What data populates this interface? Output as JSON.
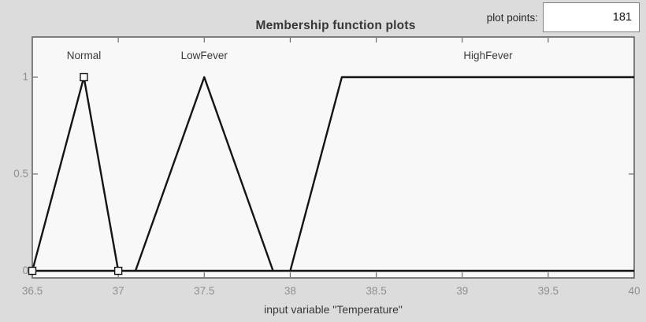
{
  "plot_points": {
    "label": "plot points:",
    "value": "181"
  },
  "chart_data": {
    "type": "line",
    "title": "Membership function plots",
    "xlabel": "input variable \"Temperature\"",
    "ylabel": "",
    "xlim": [
      36.5,
      40
    ],
    "ylim": [
      -0.04,
      1.24
    ],
    "grid": false,
    "legend_position": "labels-above-curves",
    "x_ticks": [
      36.5,
      37,
      37.5,
      38,
      38.5,
      39,
      39.5,
      40
    ],
    "x_tick_labels": [
      "36.5",
      "37",
      "37.5",
      "38",
      "38.5",
      "39",
      "39.5",
      "40"
    ],
    "y_ticks": [
      0,
      0.5,
      1
    ],
    "y_tick_labels": [
      "0",
      "0.5",
      "1"
    ],
    "baseline": [
      [
        36.5,
        0
      ],
      [
        40,
        0
      ]
    ],
    "series": [
      {
        "name": "Normal",
        "mf_type": "trimf",
        "points": [
          [
            36.5,
            0
          ],
          [
            36.8,
            1
          ],
          [
            37,
            0
          ]
        ],
        "selected": true
      },
      {
        "name": "LowFever",
        "mf_type": "trimf",
        "points": [
          [
            37.1,
            0
          ],
          [
            37.5,
            1
          ],
          [
            37.9,
            0
          ]
        ],
        "selected": false
      },
      {
        "name": "HighFever",
        "mf_type": "trapmf",
        "points": [
          [
            38,
            0
          ],
          [
            38.3,
            1
          ],
          [
            40,
            1
          ]
        ],
        "selected": false
      }
    ],
    "colors": {
      "figure_bg": "#dcdcdc",
      "plot_bg": "#f8f8f8",
      "axis_border": "#5a5a5a",
      "tick": "#6e6e6e",
      "tick_label": "#8f8f8f",
      "line": "#141414",
      "text": "#373737"
    }
  }
}
